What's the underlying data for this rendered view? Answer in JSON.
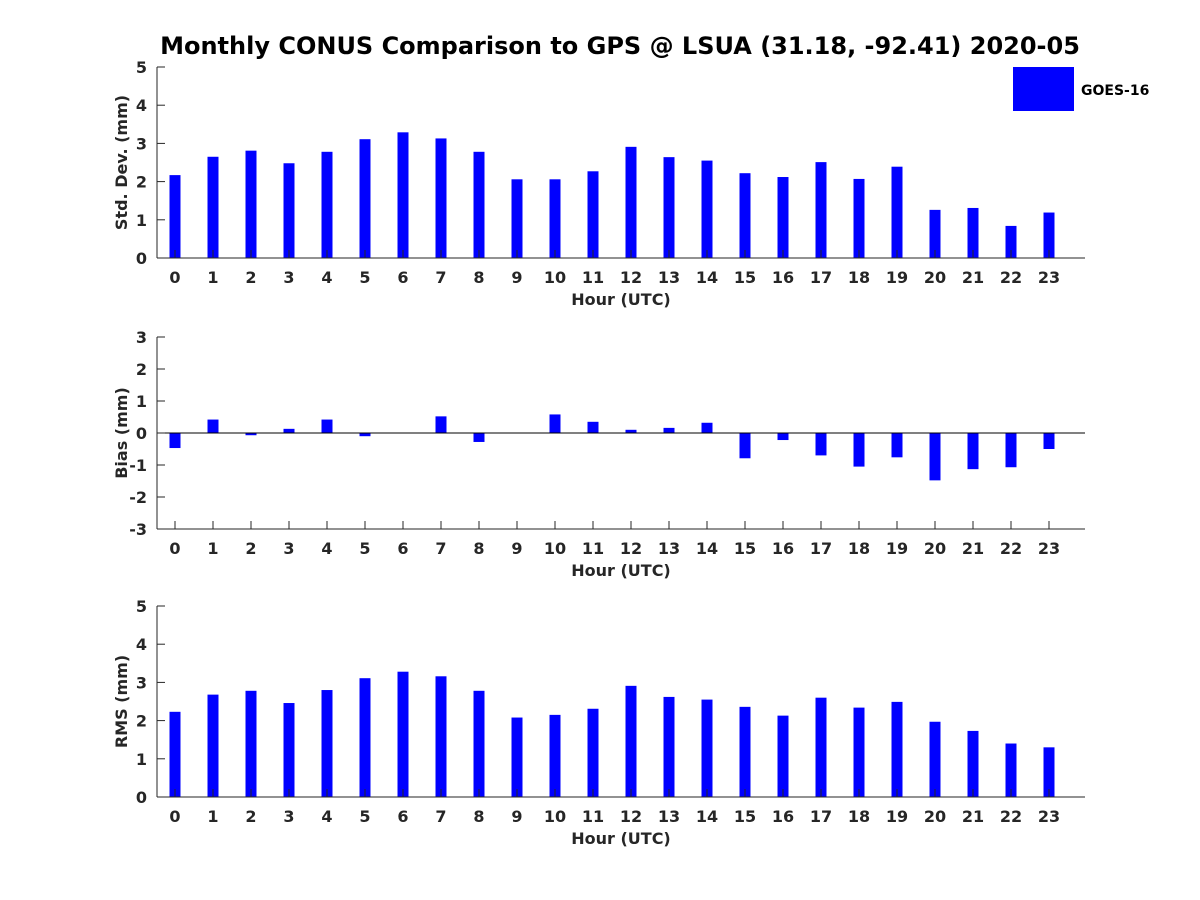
{
  "title": "Monthly CONUS Comparison to GPS @ LSUA (31.18, -92.41) 2020-05",
  "legend": {
    "label": "GOES-16",
    "color": "#0000ff"
  },
  "chart_data": [
    {
      "type": "bar",
      "name": "std-dev",
      "xlabel": "Hour (UTC)",
      "ylabel": "Std. Dev. (mm)",
      "ylim": [
        0,
        5
      ],
      "yticks": [
        "0",
        "1",
        "2",
        "3",
        "4",
        "5"
      ],
      "categories": [
        "0",
        "1",
        "2",
        "3",
        "4",
        "5",
        "6",
        "7",
        "8",
        "9",
        "10",
        "11",
        "12",
        "13",
        "14",
        "15",
        "16",
        "17",
        "18",
        "19",
        "20",
        "21",
        "22",
        "23"
      ],
      "series": [
        {
          "name": "GOES-16",
          "color": "#0000ff",
          "values": [
            2.17,
            2.65,
            2.81,
            2.48,
            2.78,
            3.11,
            3.29,
            3.13,
            2.78,
            2.06,
            2.06,
            2.27,
            2.91,
            2.64,
            2.55,
            2.22,
            2.12,
            2.51,
            2.07,
            2.39,
            1.26,
            1.31,
            0.84,
            1.19
          ]
        }
      ]
    },
    {
      "type": "bar",
      "name": "bias",
      "xlabel": "Hour (UTC)",
      "ylabel": "Bias (mm)",
      "ylim": [
        -3,
        3
      ],
      "yticks": [
        "-3",
        "-2",
        "-1",
        "0",
        "1",
        "2",
        "3"
      ],
      "categories": [
        "0",
        "1",
        "2",
        "3",
        "4",
        "5",
        "6",
        "7",
        "8",
        "9",
        "10",
        "11",
        "12",
        "13",
        "14",
        "15",
        "16",
        "17",
        "18",
        "19",
        "20",
        "21",
        "22",
        "23"
      ],
      "series": [
        {
          "name": "GOES-16",
          "color": "#0000ff",
          "values": [
            -0.47,
            0.42,
            -0.07,
            0.13,
            0.42,
            -0.1,
            0.0,
            0.52,
            -0.28,
            0.0,
            0.58,
            0.35,
            0.1,
            0.16,
            0.32,
            -0.79,
            -0.22,
            -0.7,
            -1.05,
            -0.76,
            -1.48,
            -1.13,
            -1.07,
            -0.5
          ]
        }
      ]
    },
    {
      "type": "bar",
      "name": "rms",
      "xlabel": "Hour (UTC)",
      "ylabel": "RMS (mm)",
      "ylim": [
        0,
        5
      ],
      "yticks": [
        "0",
        "1",
        "2",
        "3",
        "4",
        "5"
      ],
      "categories": [
        "0",
        "1",
        "2",
        "3",
        "4",
        "5",
        "6",
        "7",
        "8",
        "9",
        "10",
        "11",
        "12",
        "13",
        "14",
        "15",
        "16",
        "17",
        "18",
        "19",
        "20",
        "21",
        "22",
        "23"
      ],
      "series": [
        {
          "name": "GOES-16",
          "color": "#0000ff",
          "values": [
            2.23,
            2.68,
            2.78,
            2.46,
            2.8,
            3.11,
            3.28,
            3.16,
            2.78,
            2.08,
            2.15,
            2.31,
            2.91,
            2.62,
            2.55,
            2.36,
            2.13,
            2.6,
            2.34,
            2.49,
            1.97,
            1.73,
            1.4,
            1.3
          ]
        }
      ]
    }
  ]
}
